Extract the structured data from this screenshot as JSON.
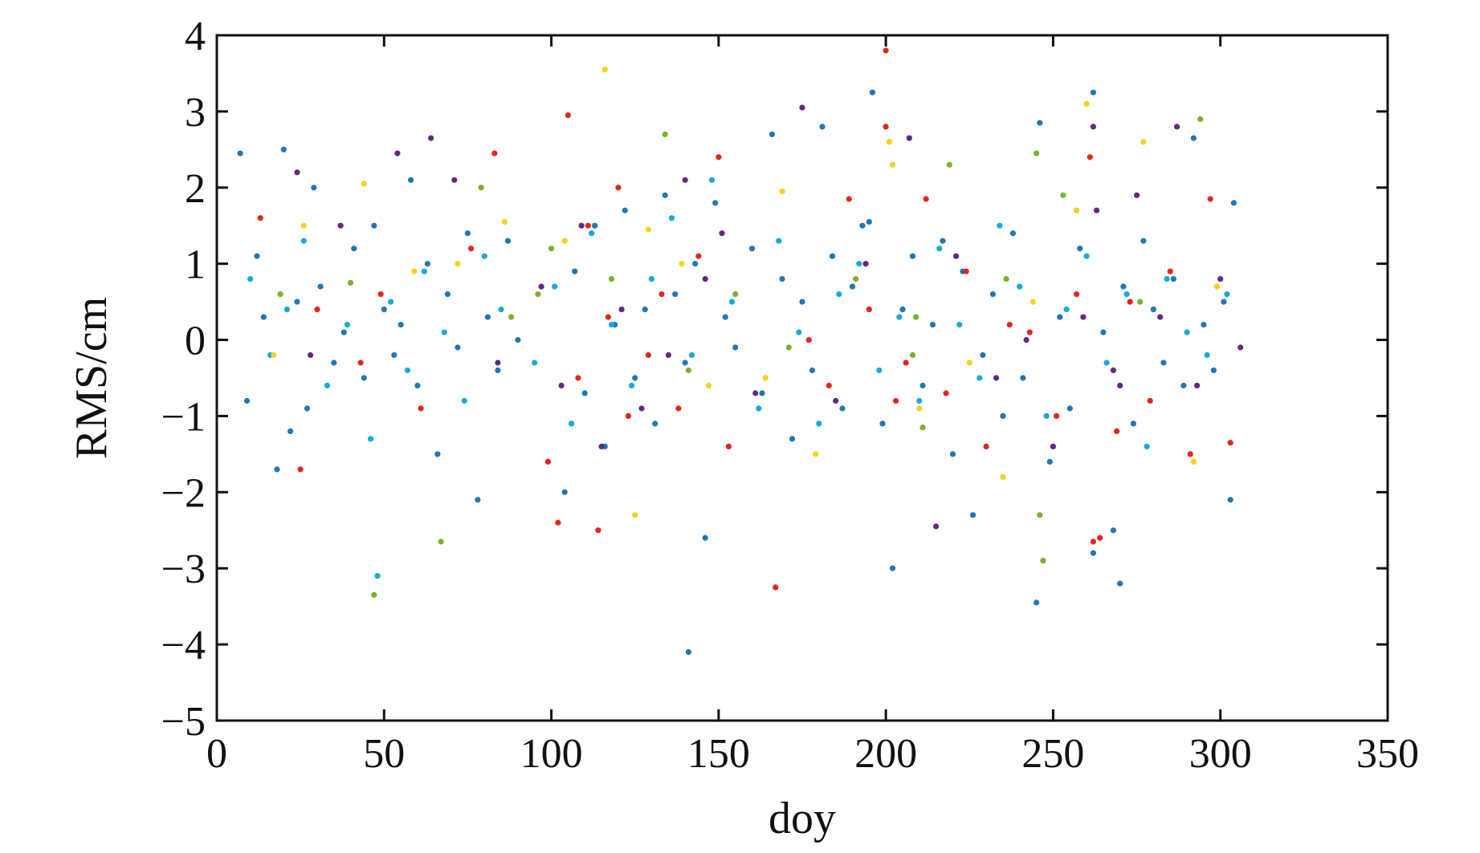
{
  "chart_data": {
    "type": "scatter",
    "title": "",
    "xlabel": "doy",
    "ylabel": "RMS/cm",
    "xlim": [
      0,
      350
    ],
    "ylim": [
      -5,
      4
    ],
    "xticks": [
      0,
      50,
      100,
      150,
      200,
      250,
      300,
      350
    ],
    "yticks": [
      -5,
      -4,
      -3,
      -2,
      -1,
      0,
      1,
      2,
      3,
      4
    ],
    "xtick_labels": [
      "0",
      "50",
      "100",
      "150",
      "200",
      "250",
      "300",
      "350"
    ],
    "ytick_labels": [
      "−5",
      "−4",
      "−3",
      "−2",
      "−1",
      "0",
      "1",
      "2",
      "3",
      "4"
    ],
    "grid": false,
    "legend": "none",
    "colors": [
      "#1f77b4",
      "#17a9d8",
      "#e8231c",
      "#5e2a84",
      "#7bb12c",
      "#f7d117"
    ],
    "series": [
      {
        "color": "#1f77b4",
        "x": [
          7,
          9,
          12,
          14,
          18,
          20,
          22,
          24,
          27,
          29,
          31,
          35,
          38,
          41,
          44,
          47,
          50,
          53,
          55,
          58,
          60,
          63,
          66,
          69,
          72,
          75,
          78,
          81,
          84,
          87,
          90,
          104,
          107,
          110,
          113,
          116,
          119,
          122,
          125,
          128,
          131,
          134,
          137,
          140,
          143,
          146,
          149,
          152,
          155,
          160,
          163,
          166,
          169,
          172,
          175,
          178,
          181,
          184,
          187,
          190,
          193,
          196,
          199,
          202,
          205,
          208,
          211,
          214,
          217,
          220,
          223,
          226,
          229,
          232,
          235,
          238,
          241,
          246,
          249,
          252,
          255,
          258,
          262,
          265,
          268,
          271,
          274,
          277,
          280,
          283,
          286,
          289,
          292,
          295,
          298,
          301,
          304,
          303,
          195,
          141,
          262,
          245,
          270
        ],
        "y": [
          2.45,
          -0.8,
          1.1,
          0.3,
          -1.7,
          2.5,
          -1.2,
          0.5,
          -0.9,
          2.0,
          0.7,
          -0.3,
          0.1,
          1.2,
          -0.5,
          1.5,
          0.4,
          -0.2,
          0.2,
          2.1,
          -0.6,
          1.0,
          -1.5,
          0.6,
          -0.1,
          1.4,
          -2.1,
          0.3,
          -0.4,
          1.3,
          0.0,
          -2.0,
          0.9,
          -0.7,
          1.5,
          -1.4,
          0.2,
          1.7,
          -0.5,
          0.4,
          -1.1,
          1.9,
          0.6,
          -0.3,
          1.0,
          -2.6,
          1.8,
          0.3,
          -0.1,
          1.2,
          -0.7,
          2.7,
          0.8,
          -1.3,
          0.5,
          -0.4,
          2.8,
          1.1,
          -0.9,
          0.7,
          1.5,
          3.25,
          -1.1,
          -3.0,
          0.4,
          1.1,
          -0.6,
          0.2,
          1.3,
          -1.5,
          0.9,
          -2.3,
          -0.2,
          0.6,
          -1.0,
          1.4,
          -0.5,
          2.85,
          -1.6,
          0.3,
          -0.9,
          1.2,
          3.25,
          0.1,
          -2.5,
          0.7,
          -1.1,
          1.3,
          0.4,
          -0.3,
          0.8,
          -0.6,
          2.65,
          0.2,
          -0.4,
          0.5,
          1.8,
          -2.1,
          1.55,
          -4.1,
          -2.8,
          -3.45,
          -3.2
        ]
      },
      {
        "color": "#17a9d8",
        "x": [
          10,
          16,
          21,
          26,
          33,
          39,
          46,
          48,
          52,
          57,
          62,
          68,
          74,
          80,
          85,
          95,
          101,
          106,
          112,
          118,
          124,
          130,
          136,
          142,
          148,
          154,
          162,
          168,
          174,
          180,
          186,
          192,
          198,
          204,
          210,
          216,
          222,
          228,
          234,
          240,
          248,
          254,
          260,
          266,
          272,
          278,
          284,
          290,
          296,
          302
        ],
        "y": [
          0.8,
          -0.2,
          0.4,
          1.3,
          -0.6,
          0.2,
          -1.3,
          -3.1,
          0.5,
          -0.4,
          0.9,
          0.1,
          -0.8,
          1.1,
          0.4,
          -0.3,
          0.7,
          -1.1,
          1.4,
          0.2,
          -0.6,
          0.8,
          1.6,
          -0.2,
          2.1,
          0.5,
          -0.9,
          1.3,
          0.1,
          -1.1,
          0.6,
          1.0,
          -0.4,
          0.3,
          -0.8,
          1.2,
          0.2,
          -0.5,
          1.5,
          0.7,
          -1.0,
          0.4,
          1.1,
          -0.3,
          0.6,
          -1.4,
          0.8,
          0.1,
          -0.2,
          0.6
        ]
      },
      {
        "color": "#e8231c",
        "x": [
          13,
          25,
          30,
          43,
          49,
          61,
          76,
          83,
          99,
          102,
          105,
          108,
          111,
          114,
          117,
          120,
          123,
          129,
          133,
          138,
          144,
          150,
          153,
          167,
          177,
          183,
          189,
          195,
          200,
          203,
          206,
          212,
          218,
          224,
          230,
          237,
          243,
          251,
          257,
          261,
          264,
          269,
          273,
          279,
          285,
          291,
          297,
          303,
          262,
          200
        ],
        "y": [
          1.6,
          -1.7,
          0.4,
          -0.3,
          0.6,
          -0.9,
          1.2,
          2.45,
          -1.6,
          -2.4,
          2.95,
          -0.5,
          1.5,
          -2.5,
          0.3,
          2.0,
          -1.0,
          -0.2,
          0.6,
          -0.9,
          1.1,
          2.4,
          -1.4,
          -3.25,
          0.0,
          -0.6,
          1.85,
          0.4,
          2.8,
          -0.8,
          -0.3,
          1.85,
          -0.7,
          0.9,
          -1.4,
          0.2,
          0.1,
          -1.0,
          0.6,
          2.4,
          -2.6,
          -1.2,
          0.5,
          -0.8,
          0.9,
          -1.5,
          1.85,
          -1.35,
          -2.65,
          3.8
        ]
      },
      {
        "color": "#5e2a84",
        "x": [
          24,
          28,
          37,
          54,
          64,
          71,
          84,
          97,
          103,
          109,
          115,
          121,
          127,
          135,
          140,
          146,
          151,
          161,
          175,
          185,
          194,
          207,
          215,
          221,
          233,
          242,
          250,
          259,
          263,
          268,
          275,
          282,
          287,
          293,
          300,
          306,
          270,
          262
        ],
        "y": [
          2.2,
          -0.2,
          1.5,
          2.45,
          2.65,
          2.1,
          -0.3,
          0.7,
          -0.6,
          1.5,
          -1.4,
          0.4,
          -0.9,
          -0.2,
          2.1,
          0.8,
          1.4,
          -0.7,
          3.05,
          -0.8,
          1.0,
          2.65,
          -2.45,
          1.1,
          -0.5,
          0.0,
          -1.4,
          0.3,
          1.7,
          -0.4,
          1.9,
          0.3,
          2.8,
          -0.6,
          0.8,
          -0.1,
          -0.6,
          2.8
        ]
      },
      {
        "color": "#7bb12c",
        "x": [
          19,
          40,
          47,
          67,
          79,
          88,
          96,
          100,
          118,
          134,
          141,
          155,
          171,
          191,
          208,
          211,
          219,
          236,
          245,
          247,
          253,
          276,
          294,
          246,
          209
        ],
        "y": [
          0.6,
          0.75,
          -3.35,
          -2.65,
          2.0,
          0.3,
          0.6,
          1.2,
          0.8,
          2.7,
          -0.4,
          0.6,
          -0.1,
          0.8,
          -0.2,
          -1.15,
          2.3,
          0.8,
          2.45,
          -2.9,
          1.9,
          0.5,
          2.9,
          -2.3,
          0.3
        ]
      },
      {
        "color": "#f7d117",
        "x": [
          17,
          26,
          44,
          59,
          72,
          86,
          104,
          116,
          125,
          139,
          147,
          164,
          169,
          179,
          201,
          210,
          225,
          235,
          244,
          257,
          260,
          277,
          292,
          299,
          129,
          202
        ],
        "y": [
          -0.2,
          1.5,
          2.05,
          0.9,
          1.0,
          1.55,
          1.3,
          3.55,
          -2.3,
          1.0,
          -0.6,
          -0.5,
          1.95,
          -1.5,
          2.6,
          -0.9,
          -0.3,
          -1.8,
          0.5,
          1.7,
          3.1,
          2.6,
          -1.6,
          0.7,
          1.45,
          2.3
        ]
      }
    ]
  }
}
